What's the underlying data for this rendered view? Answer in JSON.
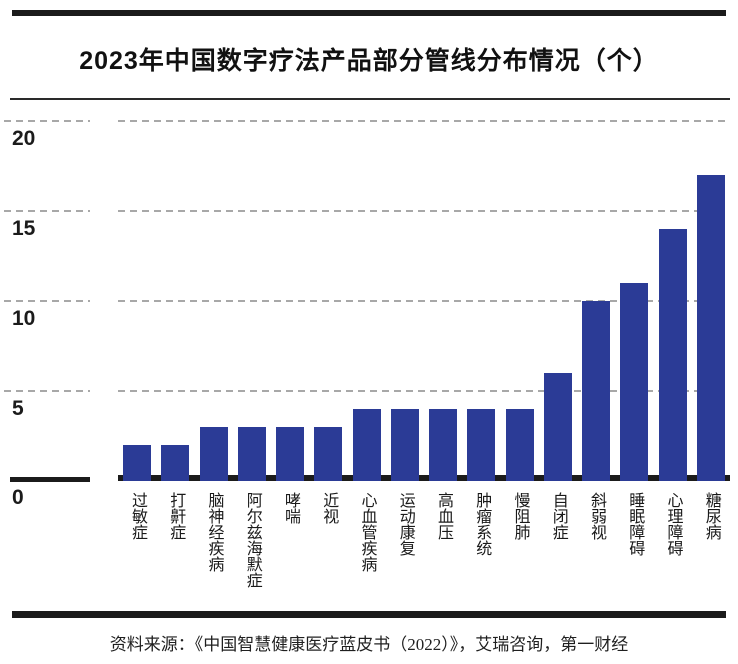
{
  "header": {
    "title": "2023年中国数字疗法产品部分管线分布情况（个）"
  },
  "chart_data": {
    "type": "bar",
    "title": "2023年中国数字疗法产品部分管线分布情况（个）",
    "unit": "个",
    "categories": [
      "过敏症",
      "打鼾症",
      "脑神经疾病",
      "阿尔兹海默症",
      "哮喘",
      "近视",
      "心血管疾病",
      "运动康复",
      "高血压",
      "肿瘤系统",
      "慢阻肺",
      "自闭症",
      "斜弱视",
      "睡眠障碍",
      "心理障碍",
      "糖尿病"
    ],
    "values": [
      2,
      2,
      3,
      3,
      3,
      3,
      4,
      4,
      4,
      4,
      4,
      6,
      10,
      11,
      14,
      17
    ],
    "xlabel": "",
    "ylabel": "",
    "ylim": [
      0,
      20
    ],
    "yticks": [
      0,
      5,
      10,
      15,
      20
    ],
    "grid": "horizontal-dashed",
    "legend_position": "none",
    "bar_color": "#2b3b96",
    "gridline_color": "#a8a8a8",
    "axis_color": "#1b1b1b",
    "text_color": "#1b1b1b"
  },
  "footer": {
    "source_note": "资料来源：《中国智慧健康医疗蓝皮书（2022）》，艾瑞咨询，第一财经"
  }
}
